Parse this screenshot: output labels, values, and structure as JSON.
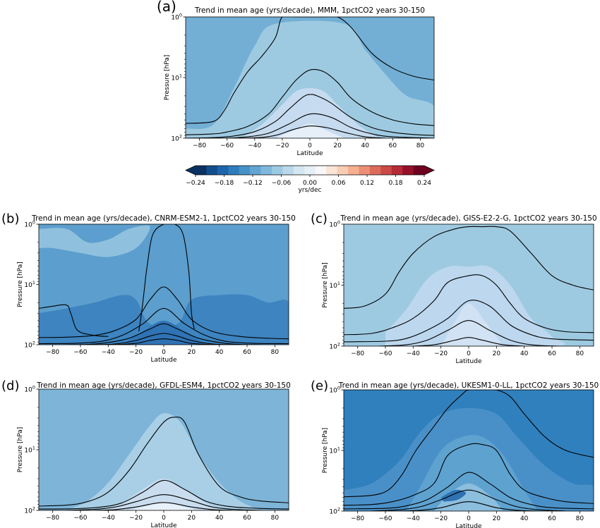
{
  "chart_data": [
    {
      "type": "heatmap",
      "panel_letter": "(a)",
      "title": "Trend in mean age (yrs/decade), MMM, 1pctCO2 years 30-150",
      "xlabel": "Latitude",
      "ylabel": "Pressure [hPa]",
      "xlim": [
        -90,
        90
      ],
      "ylim": [
        100,
        1
      ],
      "y_scale": "log",
      "x_ticks": [
        -80,
        -60,
        -40,
        -20,
        0,
        20,
        40,
        60,
        80
      ],
      "y_ticks": [
        "10^0",
        "10^1",
        "10^2"
      ],
      "grid": false,
      "fill_levels": [
        {
          "level": -0.075,
          "color": "#73afd5",
          "coverage": "background, high latitudes and upper levels"
        },
        {
          "level": -0.055,
          "color": "#9ecae1",
          "coverage": "tropical pipe and mid levels"
        },
        {
          "level": -0.03,
          "color": "#c6dbef",
          "coverage": "lower tropical stratosphere"
        },
        {
          "level": -0.01,
          "color": "#e6eff8",
          "coverage": "lowest equatorial levels"
        }
      ],
      "contour_lines": [
        {
          "x": [
            -90,
            -70,
            -62,
            -55,
            -45,
            -35,
            -25,
            -20,
            -10,
            0,
            10,
            20,
            30,
            45,
            60,
            75,
            90
          ],
          "y": [
            57,
            53,
            35,
            18,
            8,
            4.5,
            2.2,
            1,
            1,
            1,
            1,
            1,
            1.5,
            4,
            7,
            9.5,
            11
          ]
        },
        {
          "x": [
            -90,
            -70,
            -60,
            -45,
            -30,
            -20,
            -10,
            0,
            10,
            20,
            30,
            45,
            60,
            75,
            90
          ],
          "y": [
            88,
            85,
            79,
            64,
            40,
            21,
            11,
            7.5,
            8,
            12,
            22,
            37,
            50,
            58,
            62
          ]
        },
        {
          "x": [
            -90,
            -70,
            -55,
            -40,
            -25,
            -15,
            -5,
            0,
            5,
            15,
            30,
            45,
            60,
            75,
            90
          ],
          "y": [
            100,
            98,
            92,
            78,
            53,
            33,
            21,
            19,
            20,
            26,
            46,
            67,
            80,
            87,
            90
          ]
        },
        {
          "x": [
            -90,
            -60,
            -45,
            -30,
            -15,
            0,
            15,
            30,
            45,
            60,
            90
          ],
          "y": [
            100,
            100,
            95,
            83,
            58,
            40,
            45,
            67,
            85,
            95,
            100
          ]
        },
        {
          "x": [
            -55,
            -40,
            -25,
            -12,
            0,
            12,
            25,
            40,
            55
          ],
          "y": [
            100,
            99,
            90,
            72,
            63,
            67,
            80,
            95,
            100
          ]
        }
      ]
    },
    {
      "type": "heatmap",
      "panel_letter": "(b)",
      "title": "Trend in mean age (yrs/decade), CNRM-ESM2-1, 1pctCO2 years 30-150",
      "xlabel": "Latitude",
      "ylabel": "Pressure [hPa]",
      "xlim": [
        -90,
        90
      ],
      "ylim": [
        100,
        1
      ],
      "y_scale": "log",
      "x_ticks": [
        -80,
        -60,
        -40,
        -20,
        0,
        20,
        40,
        60,
        80
      ],
      "y_ticks": [
        "10^0",
        "10^1",
        "10^2"
      ],
      "grid": false,
      "fill_levels": [
        {
          "level": -0.1,
          "color": "#5c9ecd",
          "coverage": "background"
        },
        {
          "level": -0.135,
          "color": "#3d84c0",
          "coverage": "mid and lower levels"
        },
        {
          "level": -0.075,
          "color": "#8fc1de",
          "coverage": "upper level patches"
        },
        {
          "level": -0.16,
          "color": "#2f73b4",
          "coverage": "lower tropical levels"
        }
      ],
      "contour_lines": [
        {
          "x": [
            -90,
            -80,
            -70,
            -67,
            -62,
            -50,
            -40
          ],
          "y": [
            25,
            23,
            22,
            30,
            58,
            70,
            73
          ]
        },
        {
          "x": [
            -18,
            -16,
            -14,
            -12,
            -8,
            0,
            8,
            14,
            18,
            20,
            22
          ],
          "y": [
            60,
            30,
            12,
            5,
            1.5,
            1,
            1,
            1.5,
            6,
            30,
            55
          ]
        },
        {
          "x": [
            -90,
            -70,
            -50,
            -35,
            -20,
            -10,
            0,
            10,
            20,
            35,
            55,
            75,
            90
          ],
          "y": [
            76,
            75,
            70,
            58,
            38,
            18,
            11,
            18,
            38,
            60,
            73,
            78,
            80
          ]
        },
        {
          "x": [
            -90,
            -65,
            -45,
            -30,
            -15,
            0,
            15,
            30,
            45,
            65,
            90
          ],
          "y": [
            96,
            95,
            88,
            70,
            45,
            25,
            45,
            70,
            88,
            95,
            96
          ]
        },
        {
          "x": [
            -70,
            -55,
            -40,
            -25,
            -10,
            0,
            10,
            25,
            40,
            55,
            70
          ],
          "y": [
            100,
            99,
            92,
            78,
            55,
            45,
            55,
            78,
            92,
            99,
            100
          ]
        },
        {
          "x": [
            -50,
            -35,
            -20,
            -10,
            0,
            10,
            20,
            35,
            50
          ],
          "y": [
            100,
            97,
            85,
            72,
            65,
            72,
            85,
            97,
            100
          ]
        },
        {
          "x": [
            -35,
            -20,
            -10,
            0,
            10,
            20,
            35
          ],
          "y": [
            100,
            95,
            85,
            80,
            85,
            95,
            100
          ]
        }
      ]
    },
    {
      "type": "heatmap",
      "panel_letter": "(c)",
      "title": "Trend in mean age (yrs/decade), GISS-E2-2-G, 1pctCO2 years 30-150",
      "xlabel": "Latitude",
      "ylabel": "Pressure [hPa]",
      "xlim": [
        -90,
        90
      ],
      "ylim": [
        100,
        1
      ],
      "y_scale": "log",
      "x_ticks": [
        -80,
        -60,
        -40,
        -20,
        0,
        20,
        40,
        60,
        80
      ],
      "y_ticks": [
        "10^0",
        "10^1",
        "10^2"
      ],
      "grid": false,
      "fill_levels": [
        {
          "level": -0.055,
          "color": "#9ecae1",
          "coverage": "background"
        },
        {
          "level": -0.04,
          "color": "#bcd7ee",
          "coverage": "tropical lower levels"
        },
        {
          "level": -0.07,
          "color": "#85bcdc",
          "coverage": "small patches"
        },
        {
          "level": -0.03,
          "color": "#d0e2f3",
          "coverage": "equatorial lower patch"
        }
      ],
      "contour_lines": [
        {
          "x": [
            -90,
            -75,
            -60,
            -50,
            -40,
            -25,
            -10,
            0,
            10,
            20,
            30,
            45,
            60,
            75,
            90
          ],
          "y": [
            24,
            22,
            14,
            6,
            3,
            1.6,
            1.2,
            1.1,
            1.1,
            1.1,
            1.3,
            3,
            7,
            10,
            12
          ]
        },
        {
          "x": [
            -90,
            -70,
            -55,
            -40,
            -25,
            -15,
            0,
            10,
            20,
            30,
            40,
            55,
            70,
            90
          ],
          "y": [
            65,
            62,
            50,
            35,
            18,
            9,
            7,
            7,
            10,
            20,
            35,
            50,
            58,
            60
          ]
        },
        {
          "x": [
            -90,
            -60,
            -45,
            -30,
            -15,
            0,
            15,
            30,
            45,
            60,
            90
          ],
          "y": [
            85,
            83,
            75,
            55,
            35,
            18,
            22,
            45,
            65,
            76,
            80
          ]
        },
        {
          "x": [
            -65,
            -45,
            -30,
            -15,
            0,
            15,
            30,
            45,
            65
          ],
          "y": [
            100,
            95,
            80,
            55,
            38,
            55,
            80,
            95,
            100
          ]
        },
        {
          "x": [
            -40,
            -25,
            -10,
            0,
            10,
            25,
            40
          ],
          "y": [
            100,
            95,
            80,
            72,
            80,
            95,
            100
          ]
        }
      ]
    },
    {
      "type": "heatmap",
      "panel_letter": "(d)",
      "title": "Trend in mean age (yrs/decade), GFDL-ESM4, 1pctCO2 years 30-150",
      "xlabel": "Latitude",
      "ylabel": "Pressure [hPa]",
      "xlim": [
        -90,
        90
      ],
      "ylim": [
        100,
        1
      ],
      "y_scale": "log",
      "x_ticks": [
        -80,
        -60,
        -40,
        -20,
        0,
        20,
        40,
        60,
        80
      ],
      "y_ticks": [
        "10^0",
        "10^1",
        "10^2"
      ],
      "grid": false,
      "fill_levels": [
        {
          "level": -0.075,
          "color": "#7db4d8",
          "coverage": "background"
        },
        {
          "level": -0.05,
          "color": "#a9cfe6",
          "coverage": "tropical region"
        },
        {
          "level": -0.03,
          "color": "#c9ddef",
          "coverage": "lower tropical stratosphere"
        },
        {
          "level": -0.01,
          "color": "#e8f1f9",
          "coverage": "lowest equatorial levels"
        }
      ],
      "contour_lines": [
        {
          "x": [
            -90,
            -70,
            -55,
            -40,
            -25,
            -12,
            0,
            8,
            15,
            25,
            40,
            55,
            70,
            90
          ],
          "y": [
            85,
            82,
            72,
            50,
            22,
            8,
            3.5,
            2.9,
            3.5,
            12,
            40,
            60,
            70,
            75
          ]
        },
        {
          "x": [
            -90,
            -65,
            -45,
            -30,
            -15,
            0,
            15,
            30,
            45,
            65,
            90
          ],
          "y": [
            95,
            94,
            88,
            75,
            50,
            32,
            45,
            70,
            85,
            92,
            95
          ]
        },
        {
          "x": [
            -70,
            -50,
            -35,
            -20,
            0,
            20,
            35,
            50,
            70
          ],
          "y": [
            100,
            96,
            88,
            72,
            55,
            70,
            88,
            96,
            100
          ]
        },
        {
          "x": [
            -50,
            -35,
            -20,
            0,
            20,
            35,
            50
          ],
          "y": [
            100,
            97,
            88,
            74,
            88,
            97,
            100
          ]
        }
      ]
    },
    {
      "type": "heatmap",
      "panel_letter": "(e)",
      "title": "Trend in mean age (yrs/decade), UKESM1-0-LL, 1pctCO2 years 30-150",
      "xlabel": "Latitude",
      "ylabel": "Pressure [hPa]",
      "xlim": [
        -90,
        90
      ],
      "ylim": [
        100,
        1
      ],
      "y_scale": "log",
      "x_ticks": [
        -80,
        -60,
        -40,
        -20,
        0,
        20,
        40,
        60,
        80
      ],
      "y_ticks": [
        "10^0",
        "10^1",
        "10^2"
      ],
      "grid": false,
      "fill_levels": [
        {
          "level": -0.14,
          "color": "#3080bd",
          "coverage": "background"
        },
        {
          "level": -0.12,
          "color": "#4a90c8",
          "coverage": "mid levels"
        },
        {
          "level": -0.1,
          "color": "#5ea2d0",
          "coverage": "tropical mid levels"
        },
        {
          "level": -0.075,
          "color": "#8cbedd",
          "coverage": "lower tropical levels"
        },
        {
          "level": -0.15,
          "color": "#2e72b3",
          "coverage": "darker patches"
        }
      ],
      "contour_lines": [
        {
          "x": [
            -90,
            -70,
            -58,
            -48,
            -38,
            -25,
            -15,
            -5,
            0,
            10,
            20,
            30,
            40,
            55,
            70,
            90
          ],
          "y": [
            58,
            55,
            45,
            25,
            10,
            4,
            2,
            1.2,
            1,
            1,
            1,
            1.3,
            2.5,
            6,
            10,
            13
          ]
        },
        {
          "x": [
            -90,
            -70,
            -55,
            -40,
            -25,
            -15,
            0,
            10,
            20,
            30,
            40,
            55,
            70,
            90
          ],
          "y": [
            80,
            78,
            70,
            55,
            35,
            12,
            8,
            8,
            10,
            25,
            45,
            60,
            70,
            75
          ]
        },
        {
          "x": [
            -90,
            -60,
            -45,
            -30,
            -15,
            0,
            15,
            30,
            45,
            60,
            90
          ],
          "y": [
            92,
            90,
            82,
            65,
            40,
            23,
            35,
            60,
            78,
            88,
            92
          ]
        },
        {
          "x": [
            -70,
            -50,
            -35,
            -20,
            0,
            20,
            35,
            50,
            70
          ],
          "y": [
            100,
            95,
            85,
            65,
            45,
            65,
            85,
            95,
            100
          ]
        },
        {
          "x": [
            -50,
            -35,
            -20,
            0,
            20,
            35,
            50
          ],
          "y": [
            100,
            97,
            88,
            70,
            88,
            97,
            100
          ]
        }
      ]
    }
  ],
  "colorbar": {
    "label": "yrs/dec",
    "vmin": -0.24,
    "vmax": 0.24,
    "extend": "both",
    "ticks": [
      "−0.24",
      "−0.18",
      "−0.12",
      "−0.06",
      "0.00",
      "0.06",
      "0.12",
      "0.18",
      "0.24"
    ],
    "colors": [
      "#0a3162",
      "#124e8c",
      "#1d65aa",
      "#2e7cbc",
      "#4692c8",
      "#62a5d3",
      "#7fb8dc",
      "#9ccae3",
      "#bad8ea",
      "#d4e6f1",
      "#e6eff6",
      "#f7f7f7",
      "#fbe4d6",
      "#f9cdb4",
      "#f5b092",
      "#ec8f76",
      "#dd6b5c",
      "#ca4a46",
      "#b42b36",
      "#961029",
      "#6d011f"
    ]
  }
}
